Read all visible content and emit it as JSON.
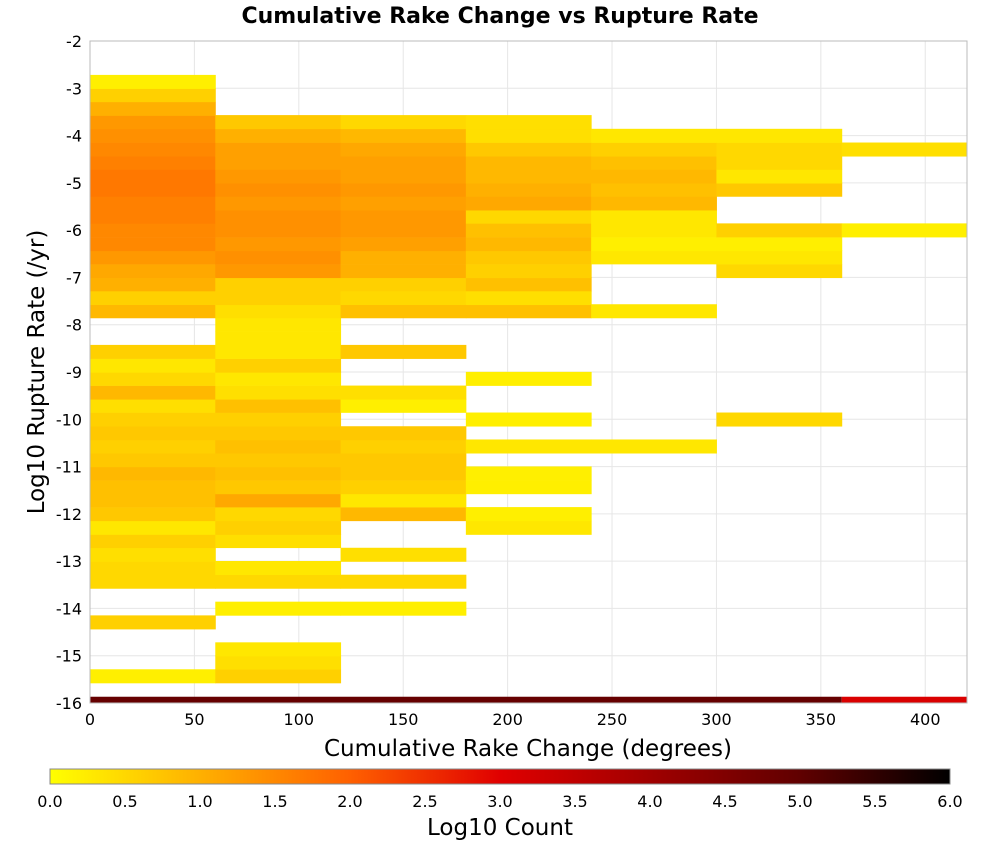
{
  "chart_data": {
    "type": "heatmap",
    "title": "Cumulative Rake Change vs Rupture Rate",
    "xlabel": "Cumulative Rake Change (degrees)",
    "ylabel": "Log10 Rupture Rate (/yr)",
    "xlim": [
      0,
      420
    ],
    "ylim": [
      -16,
      -2
    ],
    "x_ticks": [
      "0",
      "50",
      "100",
      "150",
      "200",
      "250",
      "300",
      "350",
      "400"
    ],
    "y_ticks": [
      "-2",
      "-3",
      "-4",
      "-5",
      "-6",
      "-7",
      "-8",
      "-9",
      "-10",
      "-11",
      "-12",
      "-13",
      "-14",
      "-15",
      "-16"
    ],
    "grid": true,
    "x_bin_width": 60,
    "y_bin_height": 0.286,
    "colorbar": {
      "label": "Log10 Count",
      "range": [
        0.0,
        6.0
      ],
      "ticks": [
        "0.0",
        "0.5",
        "1.0",
        "1.5",
        "2.0",
        "2.5",
        "3.0",
        "3.5",
        "4.0",
        "4.5",
        "5.0",
        "5.5",
        "6.0"
      ],
      "stops": [
        {
          "v": 0.0,
          "c": "#ffff00"
        },
        {
          "v": 1.0,
          "c": "#ffb000"
        },
        {
          "v": 2.0,
          "c": "#ff6000"
        },
        {
          "v": 3.0,
          "c": "#e00000"
        },
        {
          "v": 4.0,
          "c": "#a00000"
        },
        {
          "v": 5.0,
          "c": "#600000"
        },
        {
          "v": 6.0,
          "c": "#000000"
        }
      ]
    },
    "series": [
      {
        "x": [
          0,
          60
        ],
        "bins": [
          [
            -15.43,
            0.2
          ],
          [
            -14.29,
            0.6
          ],
          [
            -13.43,
            0.5
          ],
          [
            -13.14,
            0.5
          ],
          [
            -12.86,
            0.4
          ],
          [
            -12.57,
            0.6
          ],
          [
            -12.29,
            0.3
          ],
          [
            -12.0,
            0.7
          ],
          [
            -11.71,
            0.8
          ],
          [
            -11.43,
            0.8
          ],
          [
            -11.14,
            0.9
          ],
          [
            -10.86,
            0.7
          ],
          [
            -10.57,
            0.6
          ],
          [
            -10.29,
            0.7
          ],
          [
            -10.0,
            0.6
          ],
          [
            -9.71,
            0.4
          ],
          [
            -9.43,
            0.9
          ],
          [
            -9.14,
            0.5
          ],
          [
            -8.86,
            0.3
          ],
          [
            -8.57,
            0.6
          ],
          [
            -7.71,
            0.9
          ],
          [
            -7.43,
            0.6
          ],
          [
            -7.14,
            1.0
          ],
          [
            -6.86,
            1.1
          ],
          [
            -6.57,
            1.3
          ],
          [
            -6.29,
            1.5
          ],
          [
            -6.0,
            1.5
          ],
          [
            -5.71,
            1.6
          ],
          [
            -5.43,
            1.6
          ],
          [
            -5.14,
            1.7
          ],
          [
            -4.86,
            1.7
          ],
          [
            -4.57,
            1.6
          ],
          [
            -4.29,
            1.5
          ],
          [
            -4.0,
            1.4
          ],
          [
            -3.71,
            1.3
          ],
          [
            -3.43,
            1.0
          ],
          [
            -3.14,
            0.6
          ],
          [
            -2.86,
            0.2
          ]
        ]
      },
      {
        "x": [
          60,
          120
        ],
        "bins": [
          [
            -15.43,
            0.6
          ],
          [
            -15.14,
            0.4
          ],
          [
            -14.86,
            0.3
          ],
          [
            -14.0,
            0.2
          ],
          [
            -13.43,
            0.5
          ],
          [
            -13.14,
            0.3
          ],
          [
            -12.57,
            0.4
          ],
          [
            -12.29,
            0.6
          ],
          [
            -12.0,
            0.5
          ],
          [
            -11.71,
            1.1
          ],
          [
            -11.43,
            0.7
          ],
          [
            -11.14,
            0.8
          ],
          [
            -10.86,
            0.7
          ],
          [
            -10.57,
            0.8
          ],
          [
            -10.29,
            0.7
          ],
          [
            -10.0,
            0.6
          ],
          [
            -9.71,
            0.8
          ],
          [
            -9.43,
            0.4
          ],
          [
            -9.14,
            0.3
          ],
          [
            -8.86,
            0.6
          ],
          [
            -8.57,
            0.3
          ],
          [
            -8.29,
            0.3
          ],
          [
            -8.0,
            0.3
          ],
          [
            -7.71,
            0.4
          ],
          [
            -7.43,
            0.6
          ],
          [
            -7.14,
            0.6
          ],
          [
            -6.86,
            1.3
          ],
          [
            -6.57,
            1.4
          ],
          [
            -6.29,
            1.3
          ],
          [
            -6.0,
            1.4
          ],
          [
            -5.71,
            1.4
          ],
          [
            -5.43,
            1.3
          ],
          [
            -5.14,
            1.4
          ],
          [
            -4.86,
            1.3
          ],
          [
            -4.57,
            1.2
          ],
          [
            -4.29,
            1.2
          ],
          [
            -4.0,
            1.0
          ],
          [
            -3.71,
            0.7
          ]
        ]
      },
      {
        "x": [
          120,
          180
        ],
        "bins": [
          [
            -14.0,
            0.2
          ],
          [
            -13.43,
            0.5
          ],
          [
            -12.86,
            0.4
          ],
          [
            -12.0,
            0.9
          ],
          [
            -11.71,
            0.3
          ],
          [
            -11.43,
            0.6
          ],
          [
            -11.14,
            0.7
          ],
          [
            -10.86,
            0.7
          ],
          [
            -10.57,
            0.6
          ],
          [
            -10.29,
            0.7
          ],
          [
            -9.71,
            0.2
          ],
          [
            -9.43,
            0.4
          ],
          [
            -8.57,
            0.7
          ],
          [
            -7.71,
            0.8
          ],
          [
            -7.43,
            0.5
          ],
          [
            -7.14,
            0.6
          ],
          [
            -6.86,
            1.0
          ],
          [
            -6.57,
            1.0
          ],
          [
            -6.29,
            1.2
          ],
          [
            -6.0,
            1.3
          ],
          [
            -5.71,
            1.3
          ],
          [
            -5.43,
            1.2
          ],
          [
            -5.14,
            1.3
          ],
          [
            -4.86,
            1.2
          ],
          [
            -4.57,
            1.2
          ],
          [
            -4.29,
            1.1
          ],
          [
            -4.0,
            0.9
          ],
          [
            -3.71,
            0.5
          ]
        ]
      },
      {
        "x": [
          180,
          240
        ],
        "bins": [
          [
            -12.29,
            0.3
          ],
          [
            -12.0,
            0.2
          ],
          [
            -11.43,
            0.2
          ],
          [
            -11.14,
            0.2
          ],
          [
            -10.57,
            0.3
          ],
          [
            -10.0,
            0.2
          ],
          [
            -9.14,
            0.2
          ],
          [
            -7.71,
            0.8
          ],
          [
            -7.43,
            0.4
          ],
          [
            -7.14,
            0.8
          ],
          [
            -6.86,
            0.6
          ],
          [
            -6.57,
            0.7
          ],
          [
            -6.29,
            0.9
          ],
          [
            -6.0,
            0.8
          ],
          [
            -5.71,
            0.5
          ],
          [
            -5.43,
            1.1
          ],
          [
            -5.14,
            1.0
          ],
          [
            -4.86,
            0.9
          ],
          [
            -4.57,
            0.9
          ],
          [
            -4.29,
            0.7
          ],
          [
            -4.0,
            0.4
          ],
          [
            -3.71,
            0.4
          ]
        ]
      },
      {
        "x": [
          240,
          300
        ],
        "bins": [
          [
            -10.57,
            0.3
          ],
          [
            -7.71,
            0.3
          ],
          [
            -6.57,
            0.3
          ],
          [
            -6.29,
            0.2
          ],
          [
            -6.0,
            0.3
          ],
          [
            -5.71,
            0.3
          ],
          [
            -5.43,
            0.9
          ],
          [
            -5.14,
            0.8
          ],
          [
            -4.86,
            0.9
          ],
          [
            -4.57,
            0.8
          ],
          [
            -4.29,
            0.6
          ],
          [
            -4.0,
            0.3
          ]
        ]
      },
      {
        "x": [
          300,
          360
        ],
        "bins": [
          [
            -10.0,
            0.5
          ],
          [
            -6.86,
            0.5
          ],
          [
            -6.57,
            0.3
          ],
          [
            -6.29,
            0.2
          ],
          [
            -6.0,
            0.6
          ],
          [
            -5.14,
            0.7
          ],
          [
            -4.86,
            0.3
          ],
          [
            -4.57,
            0.5
          ],
          [
            -4.29,
            0.5
          ],
          [
            -4.0,
            0.3
          ]
        ]
      },
      {
        "x": [
          360,
          420
        ],
        "bins": [
          [
            -6.0,
            0.2
          ],
          [
            -4.29,
            0.4
          ]
        ]
      }
    ],
    "bottom_strip": [
      {
        "x": [
          0,
          360
        ],
        "value": 4.9
      },
      {
        "x": [
          360,
          420
        ],
        "value": 3.1
      }
    ]
  }
}
